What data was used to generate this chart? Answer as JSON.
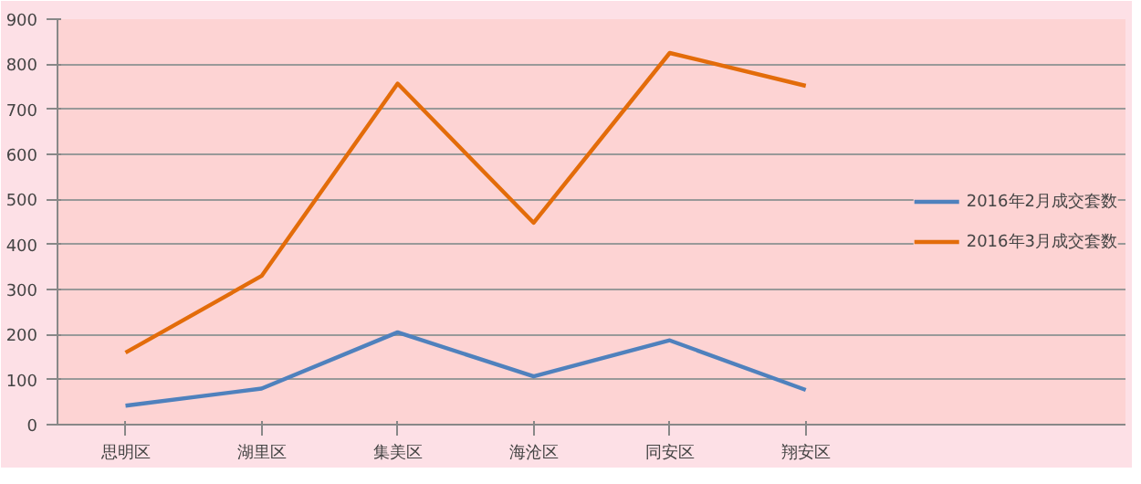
{
  "chart_data": {
    "type": "line",
    "categories": [
      "思明区",
      "湖里区",
      "集美区",
      "海沧区",
      "同安区",
      "翔安区"
    ],
    "series": [
      {
        "name": "2016年2月成交套数",
        "color": "#4f81bd",
        "values": [
          42,
          80,
          205,
          107,
          187,
          77
        ]
      },
      {
        "name": "2016年3月成交套数",
        "color": "#e36c0a",
        "values": [
          160,
          330,
          757,
          448,
          825,
          752
        ]
      }
    ],
    "ylim": [
      0,
      900
    ],
    "yticks": [
      0,
      100,
      200,
      300,
      400,
      500,
      600,
      700,
      800,
      900
    ],
    "grid": "y",
    "legend": "right",
    "marker": "none",
    "line_style": "solid"
  }
}
